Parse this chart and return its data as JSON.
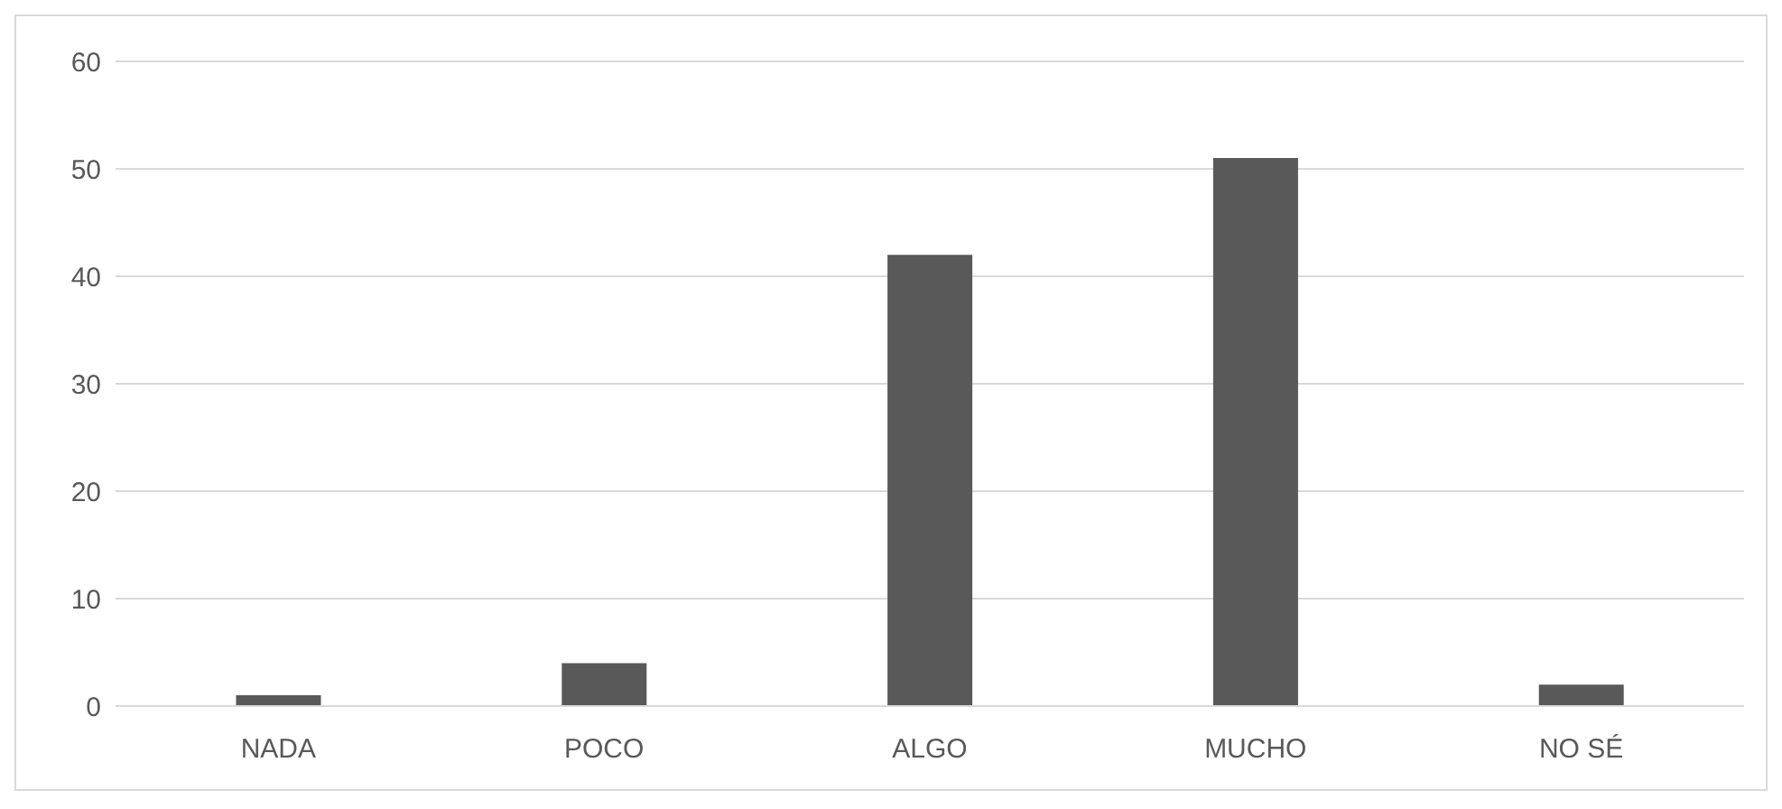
{
  "chart_data": {
    "type": "bar",
    "categories": [
      "NADA",
      "POCO",
      "ALGO",
      "MUCHO",
      "NO SÉ"
    ],
    "values": [
      1,
      4,
      42,
      51,
      2
    ],
    "color": "#595959",
    "ylim": [
      0,
      60
    ],
    "yticks": [
      0,
      10,
      20,
      30,
      40,
      50,
      60
    ],
    "grid": "y"
  }
}
